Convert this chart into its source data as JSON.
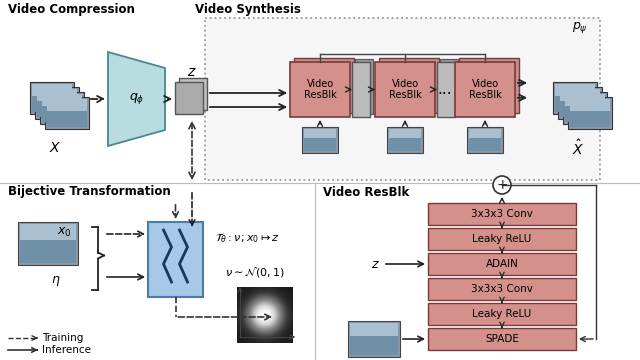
{
  "bg_color": "#ffffff",
  "section_line_color": "#bbbbbb",
  "top_left_label": "Video Compression",
  "top_right_label": "Video Synthesis",
  "bot_left_label": "Bijective Transformation",
  "bot_right_label": "Video ResBlk",
  "resblk_boxes": [
    "Video\nResBlk",
    "Video\nResBlk",
    "Video\nResBlk"
  ],
  "resblk_color": "#d4908a",
  "resblk_border": "#7a3a3a",
  "inn_color": "#a8c8e8",
  "inn_border": "#4a7aaa",
  "encoder_fill": "#b8dce0",
  "encoder_border": "#4a8890",
  "small_box_color": "#aaaaaa",
  "small_box_border": "#555555",
  "dotted_rect_color": "#555555",
  "video_resblk_labels": [
    "3x3x3 Conv",
    "Leaky ReLU",
    "ADAIN",
    "3x3x3 Conv",
    "Leaky ReLU",
    "SPADE"
  ],
  "blk_color": "#d4908a",
  "blk_border": "#7a3a3a",
  "arrow_color": "#222222",
  "frame_sky": "#aabfd0",
  "frame_land": "#7090a8",
  "frame_border": "#333333"
}
